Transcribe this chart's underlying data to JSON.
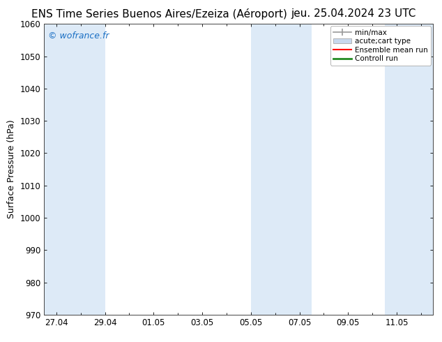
{
  "title_left": "ENS Time Series Buenos Aires/Ezeiza (Aéroport)",
  "title_right": "jeu. 25.04.2024 23 UTC",
  "ylabel": "Surface Pressure (hPa)",
  "ylim": [
    970,
    1060
  ],
  "yticks": [
    970,
    980,
    990,
    1000,
    1010,
    1020,
    1030,
    1040,
    1050,
    1060
  ],
  "xlabel_ticks": [
    "27.04",
    "29.04",
    "01.05",
    "03.05",
    "05.05",
    "07.05",
    "09.05",
    "11.05"
  ],
  "x_tick_positions": [
    0,
    2,
    4,
    6,
    8,
    10,
    12,
    14
  ],
  "shaded_regions": [
    {
      "xmin": -0.5,
      "xmax": 2.0,
      "color": "#ddeaf7"
    },
    {
      "xmin": 8.0,
      "xmax": 10.5,
      "color": "#ddeaf7"
    },
    {
      "xmin": 13.5,
      "xmax": 15.5,
      "color": "#ddeaf7"
    }
  ],
  "watermark": "© wofrance.fr",
  "watermark_color": "#1a6fc4",
  "legend_entries": [
    {
      "label": "min/max",
      "type": "errorbar",
      "color": "#aaaaaa"
    },
    {
      "label": "acute;cart type",
      "type": "box",
      "color": "#c8d8e8"
    },
    {
      "label": "Ensemble mean run",
      "type": "line",
      "color": "#ff0000"
    },
    {
      "label": "Controll run",
      "type": "line",
      "color": "#228b22"
    }
  ],
  "background_color": "#ffffff",
  "plot_bg_color": "#ffffff",
  "x_total": 15.0,
  "xlim": [
    -0.5,
    15.5
  ],
  "title_fontsize": 11,
  "tick_fontsize": 8.5,
  "ylabel_fontsize": 9,
  "watermark_fontsize": 9
}
